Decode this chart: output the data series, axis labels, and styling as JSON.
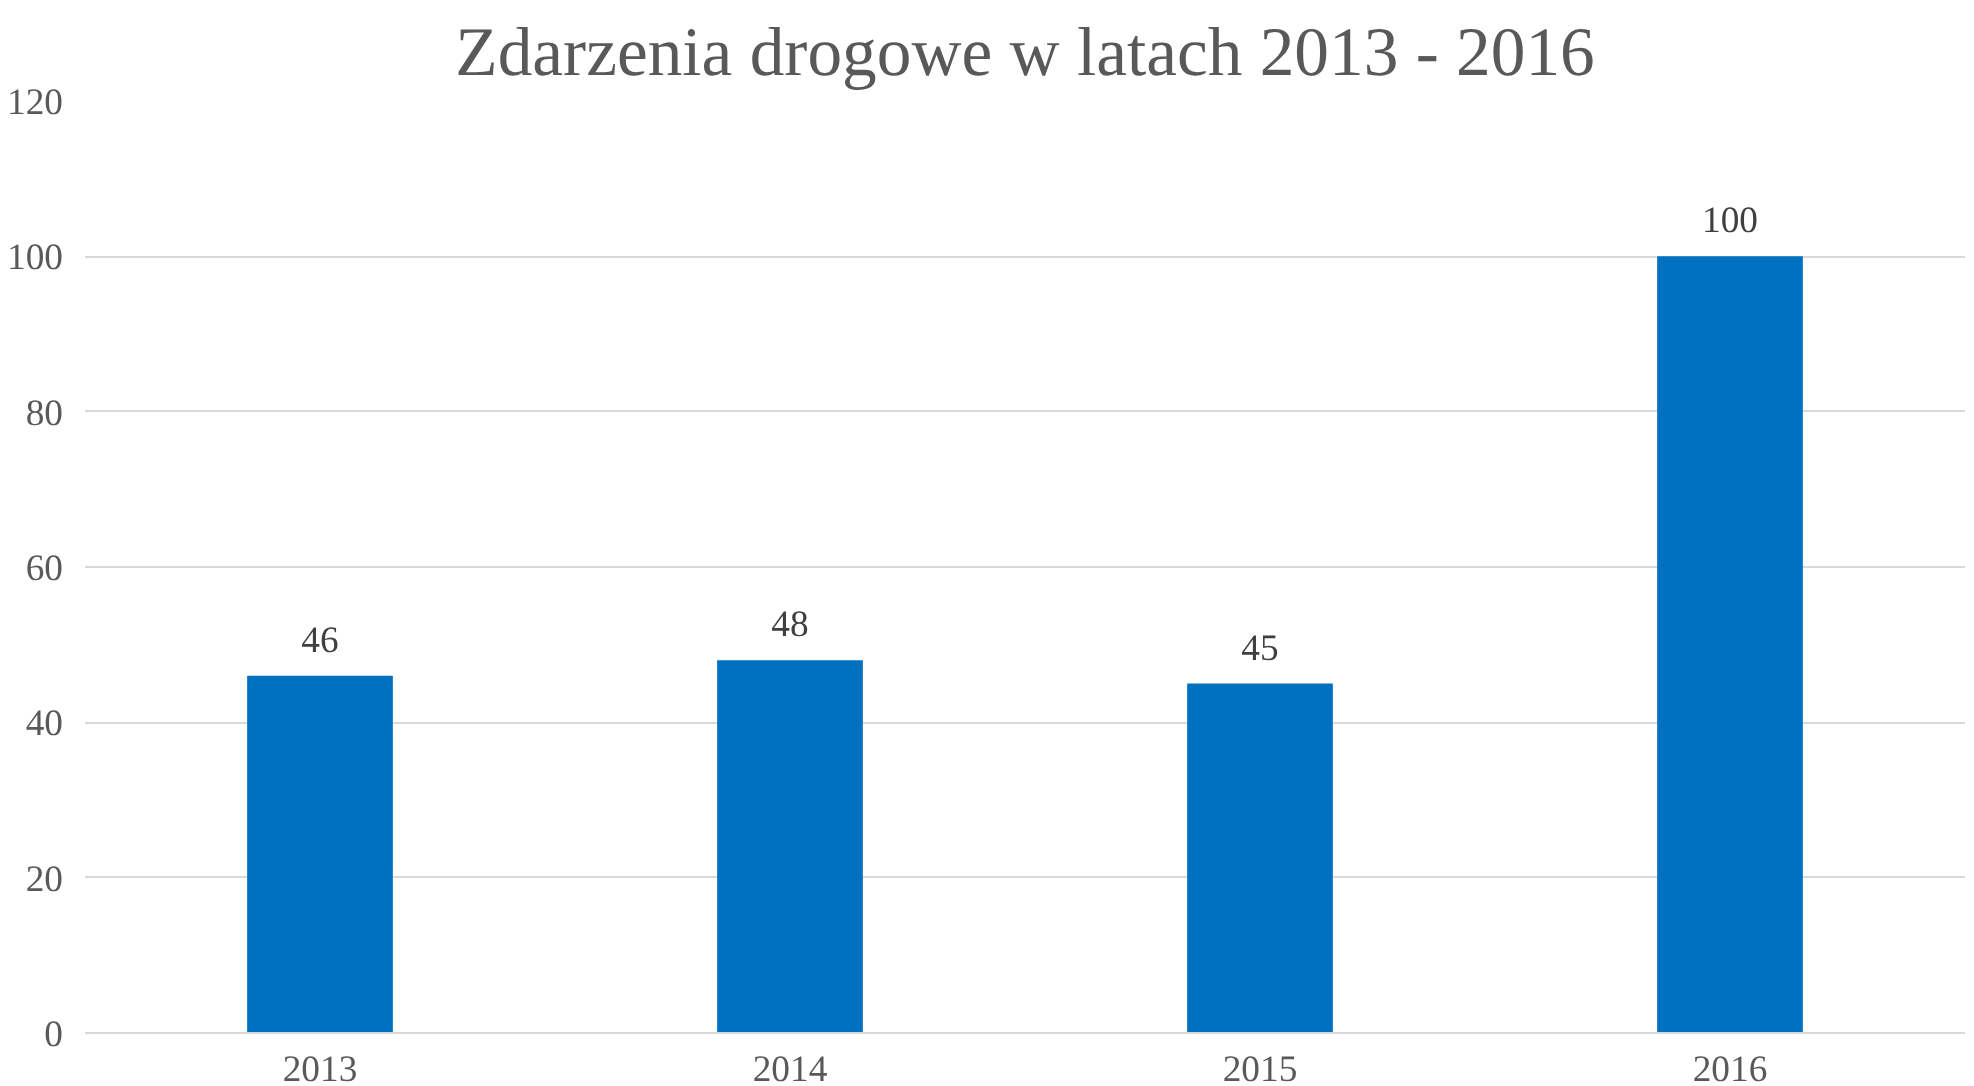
{
  "chart_data": {
    "type": "bar",
    "title": "Zdarzenia drogowe w latach 2013 - 2016",
    "categories": [
      "2013",
      "2014",
      "2015",
      "2016"
    ],
    "values": [
      46,
      48,
      45,
      100
    ],
    "color": "#0070c0",
    "ylim": [
      0,
      120
    ],
    "yticks": [
      0,
      20,
      40,
      60,
      80,
      100,
      120
    ],
    "grid": "y",
    "data_labels": true
  }
}
